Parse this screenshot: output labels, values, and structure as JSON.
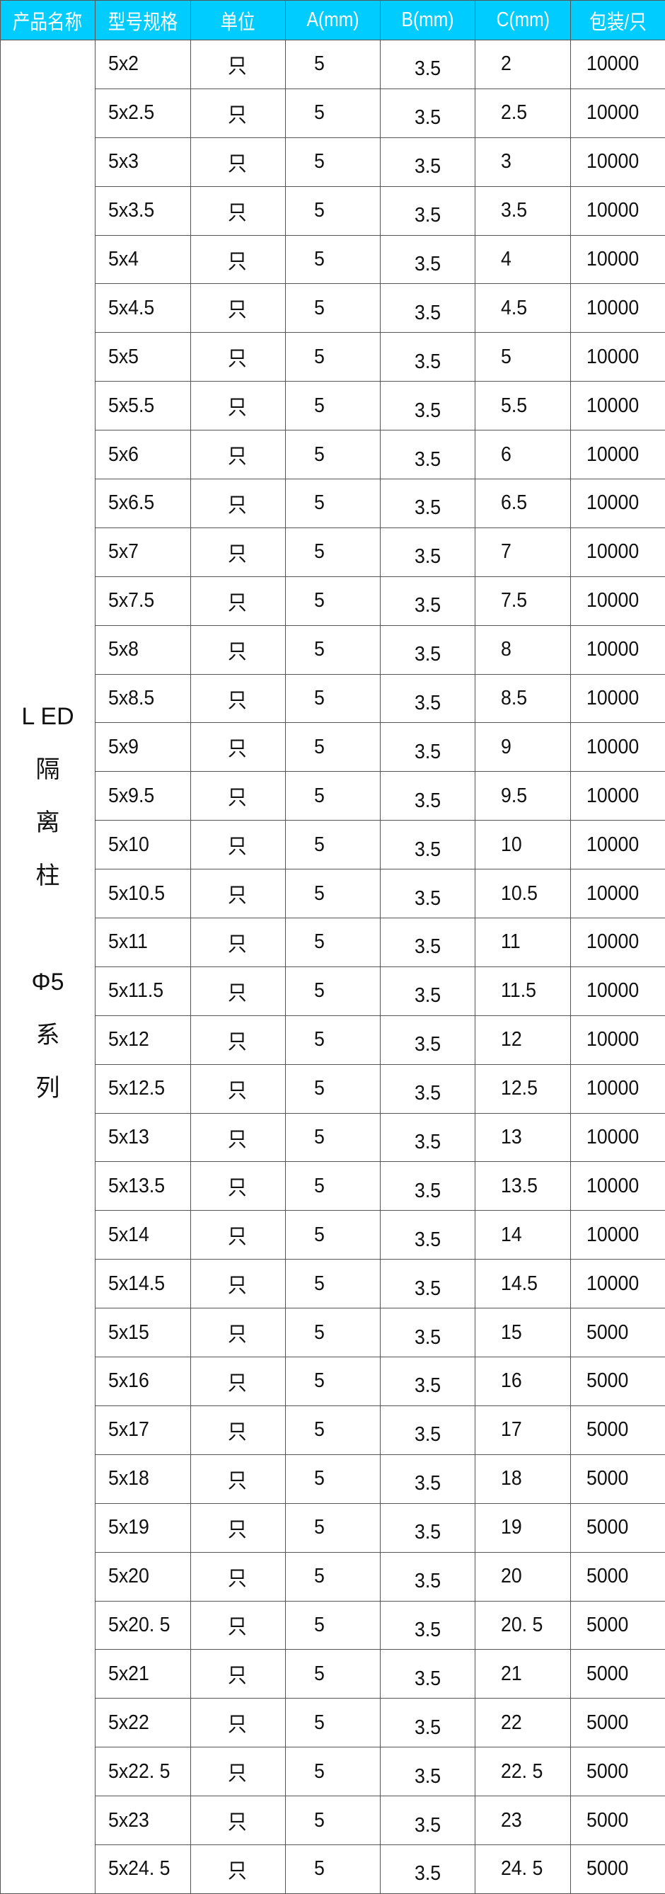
{
  "header": [
    "产品名称",
    "型号规格",
    "单位",
    "A(mm)",
    "B(mm)",
    "C(mm)",
    "包装/只"
  ],
  "product_name_lines": [
    "L ED",
    "隔",
    "离",
    "柱",
    "",
    "Φ5",
    "系",
    "列"
  ],
  "header_color": "#00ccff",
  "rows": [
    [
      "5x2",
      "只",
      "5",
      "3.5",
      "2",
      "10000"
    ],
    [
      "5x2.5",
      "只",
      "5",
      "3.5",
      "2.5",
      "10000"
    ],
    [
      "5x3",
      "只",
      "5",
      "3.5",
      "3",
      "10000"
    ],
    [
      "5x3.5",
      "只",
      "5",
      "3.5",
      "3.5",
      "10000"
    ],
    [
      "5x4",
      "只",
      "5",
      "3.5",
      "4",
      "10000"
    ],
    [
      "5x4.5",
      "只",
      "5",
      "3.5",
      "4.5",
      "10000"
    ],
    [
      "5x5",
      "只",
      "5",
      "3.5",
      "5",
      "10000"
    ],
    [
      "5x5.5",
      "只",
      "5",
      "3.5",
      "5.5",
      "10000"
    ],
    [
      "5x6",
      "只",
      "5",
      "3.5",
      "6",
      "10000"
    ],
    [
      "5x6.5",
      "只",
      "5",
      "3.5",
      "6.5",
      "10000"
    ],
    [
      "5x7",
      "只",
      "5",
      "3.5",
      "7",
      "10000"
    ],
    [
      "5x7.5",
      "只",
      "5",
      "3.5",
      "7.5",
      "10000"
    ],
    [
      "5x8",
      "只",
      "5",
      "3.5",
      "8",
      "10000"
    ],
    [
      "5x8.5",
      "只",
      "5",
      "3.5",
      "8.5",
      "10000"
    ],
    [
      "5x9",
      "只",
      "5",
      "3.5",
      "9",
      "10000"
    ],
    [
      "5x9.5",
      "只",
      "5",
      "3.5",
      "9.5",
      "10000"
    ],
    [
      "5x10",
      "只",
      "5",
      "3.5",
      "10",
      "10000"
    ],
    [
      "5x10.5",
      "只",
      "5",
      "3.5",
      "10.5",
      "10000"
    ],
    [
      "5x11",
      "只",
      "5",
      "3.5",
      "11",
      "10000"
    ],
    [
      "5x11.5",
      "只",
      "5",
      "3.5",
      "11.5",
      "10000"
    ],
    [
      "5x12",
      "只",
      "5",
      "3.5",
      "12",
      "10000"
    ],
    [
      "5x12.5",
      "只",
      "5",
      "3.5",
      "12.5",
      "10000"
    ],
    [
      "5x13",
      "只",
      "5",
      "3.5",
      "13",
      "10000"
    ],
    [
      "5x13.5",
      "只",
      "5",
      "3.5",
      "13.5",
      "10000"
    ],
    [
      "5x14",
      "只",
      "5",
      "3.5",
      "14",
      "10000"
    ],
    [
      "5x14.5",
      "只",
      "5",
      "3.5",
      "14.5",
      "10000"
    ],
    [
      "5x15",
      "只",
      "5",
      "3.5",
      "15",
      "5000"
    ],
    [
      "5x16",
      "只",
      "5",
      "3.5",
      "16",
      "5000"
    ],
    [
      "5x17",
      "只",
      "5",
      "3.5",
      "17",
      "5000"
    ],
    [
      "5x18",
      "只",
      "5",
      "3.5",
      "18",
      "5000"
    ],
    [
      "5x19",
      "只",
      "5",
      "3.5",
      "19",
      "5000"
    ],
    [
      "5x20",
      "只",
      "5",
      "3.5",
      "20",
      "5000"
    ],
    [
      "5x20. 5",
      "只",
      "5",
      "3.5",
      "20. 5",
      "5000"
    ],
    [
      "5x21",
      "只",
      "5",
      "3.5",
      "21",
      "5000"
    ],
    [
      "5x22",
      "只",
      "5",
      "3.5",
      "22",
      "5000"
    ],
    [
      "5x22. 5",
      "只",
      "5",
      "3.5",
      "22. 5",
      "5000"
    ],
    [
      "5x23",
      "只",
      "5",
      "3.5",
      "23",
      "5000"
    ],
    [
      "5x24. 5",
      "只",
      "5",
      "3.5",
      "24. 5",
      "5000"
    ]
  ]
}
